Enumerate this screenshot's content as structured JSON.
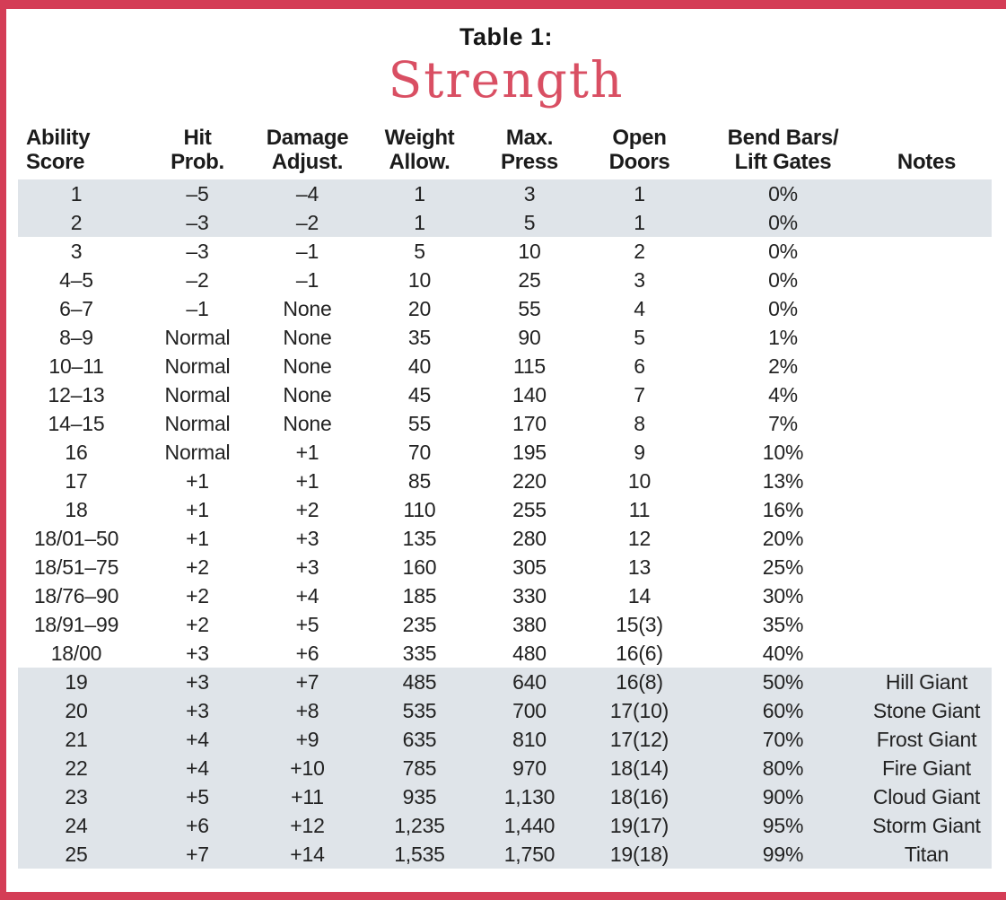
{
  "page": {
    "caption": "Table 1:",
    "title": "Strength"
  },
  "colors": {
    "frame_red": "#d43d56",
    "title_red": "#d94f63",
    "row_shade": "#dfe4e9",
    "text": "#222222"
  },
  "table": {
    "headers": [
      "Ability\nScore",
      "Hit\nProb.",
      "Damage\nAdjust.",
      "Weight\nAllow.",
      "Max.\nPress",
      "Open\nDoors",
      "Bend Bars/\nLift Gates",
      "Notes"
    ],
    "rows": [
      {
        "shaded": true,
        "cells": [
          "1",
          "–5",
          "–4",
          "1",
          "3",
          "1",
          "0%",
          ""
        ]
      },
      {
        "shaded": true,
        "cells": [
          "2",
          "–3",
          "–2",
          "1",
          "5",
          "1",
          "0%",
          ""
        ]
      },
      {
        "shaded": false,
        "cells": [
          "3",
          "–3",
          "–1",
          "5",
          "10",
          "2",
          "0%",
          ""
        ]
      },
      {
        "shaded": false,
        "cells": [
          "4–5",
          "–2",
          "–1",
          "10",
          "25",
          "3",
          "0%",
          ""
        ]
      },
      {
        "shaded": false,
        "cells": [
          "6–7",
          "–1",
          "None",
          "20",
          "55",
          "4",
          "0%",
          ""
        ]
      },
      {
        "shaded": false,
        "cells": [
          "8–9",
          "Normal",
          "None",
          "35",
          "90",
          "5",
          "1%",
          ""
        ]
      },
      {
        "shaded": false,
        "cells": [
          "10–11",
          "Normal",
          "None",
          "40",
          "115",
          "6",
          "2%",
          ""
        ]
      },
      {
        "shaded": false,
        "cells": [
          "12–13",
          "Normal",
          "None",
          "45",
          "140",
          "7",
          "4%",
          ""
        ]
      },
      {
        "shaded": false,
        "cells": [
          "14–15",
          "Normal",
          "None",
          "55",
          "170",
          "8",
          "7%",
          ""
        ]
      },
      {
        "shaded": false,
        "cells": [
          "16",
          "Normal",
          "+1",
          "70",
          "195",
          "9",
          "10%",
          ""
        ]
      },
      {
        "shaded": false,
        "cells": [
          "17",
          "+1",
          "+1",
          "85",
          "220",
          "10",
          "13%",
          ""
        ]
      },
      {
        "shaded": false,
        "cells": [
          "18",
          "+1",
          "+2",
          "110",
          "255",
          "11",
          "16%",
          ""
        ]
      },
      {
        "shaded": false,
        "cells": [
          "18/01–50",
          "+1",
          "+3",
          "135",
          "280",
          "12",
          "20%",
          ""
        ]
      },
      {
        "shaded": false,
        "cells": [
          "18/51–75",
          "+2",
          "+3",
          "160",
          "305",
          "13",
          "25%",
          ""
        ]
      },
      {
        "shaded": false,
        "cells": [
          "18/76–90",
          "+2",
          "+4",
          "185",
          "330",
          "14",
          "30%",
          ""
        ]
      },
      {
        "shaded": false,
        "cells": [
          "18/91–99",
          "+2",
          "+5",
          "235",
          "380",
          "15(3)",
          "35%",
          ""
        ]
      },
      {
        "shaded": false,
        "cells": [
          "18/00",
          "+3",
          "+6",
          "335",
          "480",
          "16(6)",
          "40%",
          ""
        ]
      },
      {
        "shaded": true,
        "cells": [
          "19",
          "+3",
          "+7",
          "485",
          "640",
          "16(8)",
          "50%",
          "Hill Giant"
        ]
      },
      {
        "shaded": true,
        "cells": [
          "20",
          "+3",
          "+8",
          "535",
          "700",
          "17(10)",
          "60%",
          "Stone Giant"
        ]
      },
      {
        "shaded": true,
        "cells": [
          "21",
          "+4",
          "+9",
          "635",
          "810",
          "17(12)",
          "70%",
          "Frost Giant"
        ]
      },
      {
        "shaded": true,
        "cells": [
          "22",
          "+4",
          "+10",
          "785",
          "970",
          "18(14)",
          "80%",
          "Fire Giant"
        ]
      },
      {
        "shaded": true,
        "cells": [
          "23",
          "+5",
          "+11",
          "935",
          "1,130",
          "18(16)",
          "90%",
          "Cloud Giant"
        ]
      },
      {
        "shaded": true,
        "cells": [
          "24",
          "+6",
          "+12",
          "1,235",
          "1,440",
          "19(17)",
          "95%",
          "Storm Giant"
        ]
      },
      {
        "shaded": true,
        "cells": [
          "25",
          "+7",
          "+14",
          "1,535",
          "1,750",
          "19(18)",
          "99%",
          "Titan"
        ]
      }
    ]
  }
}
